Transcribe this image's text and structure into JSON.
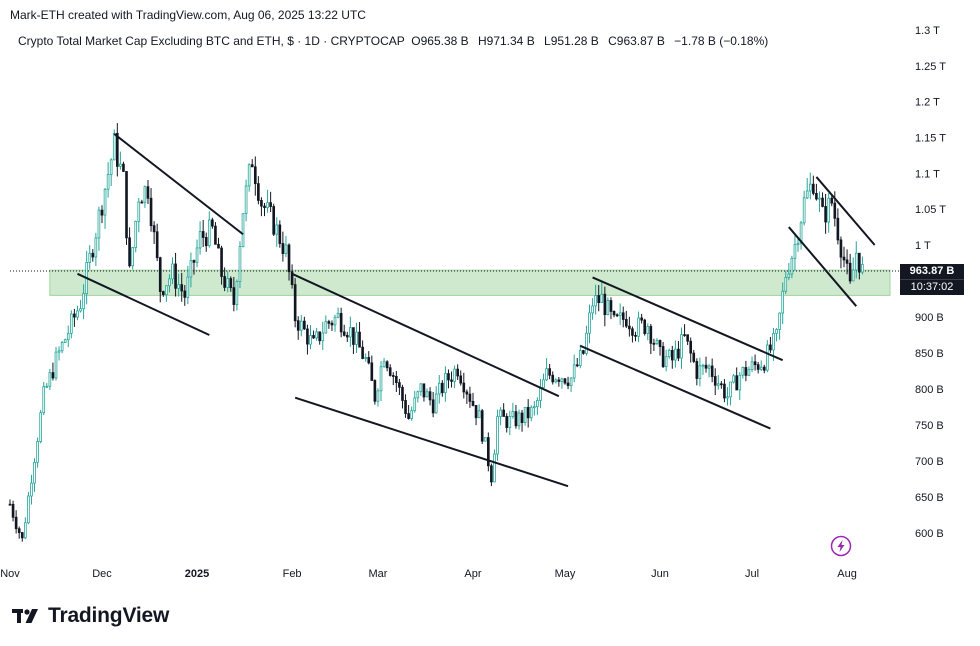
{
  "header": {
    "credit": "Mark-ETH created with TradingView.com, Aug 06, 2025 13:22 UTC"
  },
  "symbol_bar": {
    "name": "Crypto Total Market Cap Excluding BTC and ETH, $ · 1D · CRYPTOCAP",
    "open": "O965.38 B",
    "high": "H971.34 B",
    "low": "L951.28 B",
    "close": "C963.87 B",
    "change": "−1.78 B (−0.18%)"
  },
  "price_tag": {
    "price": "963.87 B",
    "countdown": "10:37:02"
  },
  "brand": {
    "name": "TradingView"
  },
  "colors": {
    "up": "#26a69a",
    "down": "#131722",
    "zone": "#cfe9cf",
    "zone_border": "#9fd39f",
    "trendline": "#131722"
  },
  "icons": [
    "tradingview-logo-icon",
    "flash-icon"
  ],
  "chart_data": {
    "type": "candlestick",
    "title": "Crypto Total Market Cap Excluding BTC and ETH",
    "y_axis": {
      "ticks": [
        "1.3 T",
        "1.25 T",
        "1.2 T",
        "1.15 T",
        "1.1 T",
        "1.05 T",
        "1 T",
        "900 B",
        "850 B",
        "800 B",
        "750 B",
        "700 B",
        "650 B",
        "600 B"
      ],
      "tick_values": [
        1300,
        1250,
        1200,
        1150,
        1100,
        1050,
        1000,
        900,
        850,
        800,
        750,
        700,
        650,
        600
      ],
      "unit": "billions USD",
      "range": [
        575,
        1310
      ]
    },
    "x_axis": {
      "ticks": [
        {
          "label": "Nov",
          "date": "2024-11-01"
        },
        {
          "label": "Dec",
          "date": "2024-12-01"
        },
        {
          "label": "2025",
          "date": "2025-01-01",
          "bold": true
        },
        {
          "label": "Feb",
          "date": "2025-02-01"
        },
        {
          "label": "Mar",
          "date": "2025-03-01"
        },
        {
          "label": "Apr",
          "date": "2025-04-01"
        },
        {
          "label": "May",
          "date": "2025-05-01"
        },
        {
          "label": "Jun",
          "date": "2025-06-01"
        },
        {
          "label": "Jul",
          "date": "2025-07-01"
        },
        {
          "label": "Aug",
          "date": "2025-08-01"
        }
      ],
      "range": [
        "2024-11-01",
        "2025-08-15"
      ]
    },
    "close_path": [
      [
        "2024-11-01",
        640
      ],
      [
        "2024-11-05",
        590
      ],
      [
        "2024-11-08",
        680
      ],
      [
        "2024-11-12",
        790
      ],
      [
        "2024-11-16",
        840
      ],
      [
        "2024-11-20",
        880
      ],
      [
        "2024-11-24",
        920
      ],
      [
        "2024-11-28",
        1000
      ],
      [
        "2024-12-02",
        1080
      ],
      [
        "2024-12-05",
        1140
      ],
      [
        "2024-12-08",
        1090
      ],
      [
        "2024-12-10",
        960
      ],
      [
        "2024-12-13",
        1070
      ],
      [
        "2024-12-16",
        1080
      ],
      [
        "2024-12-20",
        940
      ],
      [
        "2024-12-24",
        960
      ],
      [
        "2024-12-28",
        930
      ],
      [
        "2025-01-02",
        1010
      ],
      [
        "2025-01-06",
        1020
      ],
      [
        "2025-01-09",
        960
      ],
      [
        "2025-01-13",
        920
      ],
      [
        "2025-01-16",
        1050
      ],
      [
        "2025-01-19",
        1120
      ],
      [
        "2025-01-22",
        1060
      ],
      [
        "2025-01-26",
        1030
      ],
      [
        "2025-01-30",
        990
      ],
      [
        "2025-02-02",
        900
      ],
      [
        "2025-02-05",
        880
      ],
      [
        "2025-02-08",
        860
      ],
      [
        "2025-02-12",
        890
      ],
      [
        "2025-02-16",
        900
      ],
      [
        "2025-02-20",
        880
      ],
      [
        "2025-02-25",
        840
      ],
      [
        "2025-02-28",
        790
      ],
      [
        "2025-03-03",
        850
      ],
      [
        "2025-03-07",
        810
      ],
      [
        "2025-03-11",
        760
      ],
      [
        "2025-03-15",
        800
      ],
      [
        "2025-03-19",
        780
      ],
      [
        "2025-03-23",
        810
      ],
      [
        "2025-03-27",
        830
      ],
      [
        "2025-03-31",
        790
      ],
      [
        "2025-04-03",
        760
      ],
      [
        "2025-04-07",
        680
      ],
      [
        "2025-04-09",
        760
      ],
      [
        "2025-04-13",
        755
      ],
      [
        "2025-04-17",
        760
      ],
      [
        "2025-04-21",
        770
      ],
      [
        "2025-04-25",
        820
      ],
      [
        "2025-04-29",
        820
      ],
      [
        "2025-05-03",
        815
      ],
      [
        "2025-05-07",
        850
      ],
      [
        "2025-05-10",
        920
      ],
      [
        "2025-05-13",
        925
      ],
      [
        "2025-05-17",
        890
      ],
      [
        "2025-05-21",
        900
      ],
      [
        "2025-05-24",
        885
      ],
      [
        "2025-05-28",
        890
      ],
      [
        "2025-06-01",
        845
      ],
      [
        "2025-06-05",
        840
      ],
      [
        "2025-06-09",
        870
      ],
      [
        "2025-06-13",
        825
      ],
      [
        "2025-06-17",
        830
      ],
      [
        "2025-06-20",
        810
      ],
      [
        "2025-06-23",
        790
      ],
      [
        "2025-06-27",
        820
      ],
      [
        "2025-07-01",
        830
      ],
      [
        "2025-07-05",
        840
      ],
      [
        "2025-07-09",
        870
      ],
      [
        "2025-07-12",
        960
      ],
      [
        "2025-07-15",
        1000
      ],
      [
        "2025-07-18",
        1060
      ],
      [
        "2025-07-21",
        1090
      ],
      [
        "2025-07-24",
        1040
      ],
      [
        "2025-07-27",
        1060
      ],
      [
        "2025-07-30",
        1000
      ],
      [
        "2025-08-02",
        940
      ],
      [
        "2025-08-04",
        990
      ],
      [
        "2025-08-06",
        963.87
      ]
    ],
    "support_zone": {
      "low": 930,
      "high": 965,
      "start": "2024-11-14",
      "end": "2025-08-15"
    },
    "trendlines": [
      {
        "from": [
          "2024-11-23",
          960
        ],
        "to": [
          "2025-01-05",
          875
        ]
      },
      {
        "from": [
          "2024-12-05",
          1155
        ],
        "to": [
          "2025-01-16",
          1015
        ]
      },
      {
        "from": [
          "2025-02-01",
          960
        ],
        "to": [
          "2025-04-29",
          790
        ]
      },
      {
        "from": [
          "2025-02-02",
          788
        ],
        "to": [
          "2025-05-02",
          665
        ]
      },
      {
        "from": [
          "2025-05-10",
          955
        ],
        "to": [
          "2025-07-11",
          840
        ]
      },
      {
        "from": [
          "2025-05-06",
          860
        ],
        "to": [
          "2025-07-07",
          745
        ]
      },
      {
        "from": [
          "2025-07-22",
          1095
        ],
        "to": [
          "2025-08-10",
          1000
        ]
      },
      {
        "from": [
          "2025-07-13",
          1025
        ],
        "to": [
          "2025-08-04",
          915
        ]
      }
    ],
    "last_close": 963.87,
    "grid": false
  }
}
